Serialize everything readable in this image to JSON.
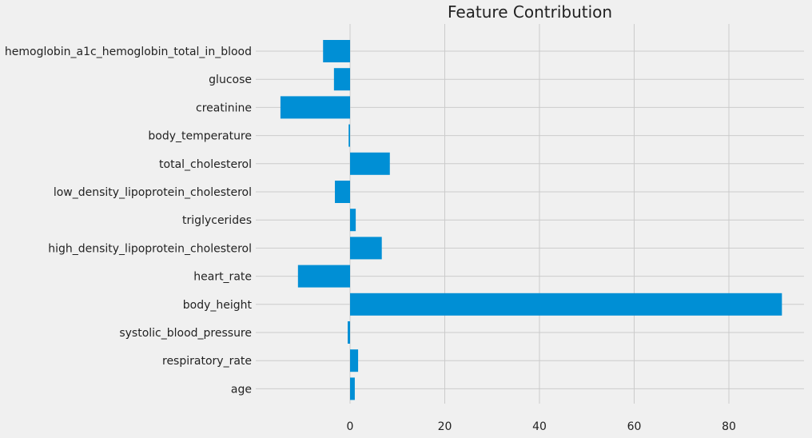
{
  "chart_data": {
    "type": "bar",
    "orientation": "horizontal",
    "title": "Feature Contribution",
    "xlabel": "",
    "ylabel": "",
    "categories": [
      "hemoglobin_a1c_hemoglobin_total_in_blood",
      "glucose",
      "creatinine",
      "body_temperature",
      "total_cholesterol",
      "low_density_lipoprotein_cholesterol",
      "triglycerides",
      "high_density_lipoprotein_cholesterol",
      "heart_rate",
      "body_height",
      "systolic_blood_pressure",
      "respiratory_rate",
      "age"
    ],
    "values": [
      -5.7,
      -3.4,
      -14.7,
      -0.3,
      8.4,
      -3.2,
      1.2,
      6.7,
      -11.0,
      91.2,
      -0.5,
      1.7,
      1.0
    ],
    "xlim": [
      -20.5,
      96
    ],
    "xticks": [
      0,
      20,
      40,
      60,
      80
    ],
    "grid": true,
    "legend": "none",
    "bar_color": "#008fd5",
    "background_color": "#f0f0f0",
    "grid_color": "#cbcbcb"
  }
}
